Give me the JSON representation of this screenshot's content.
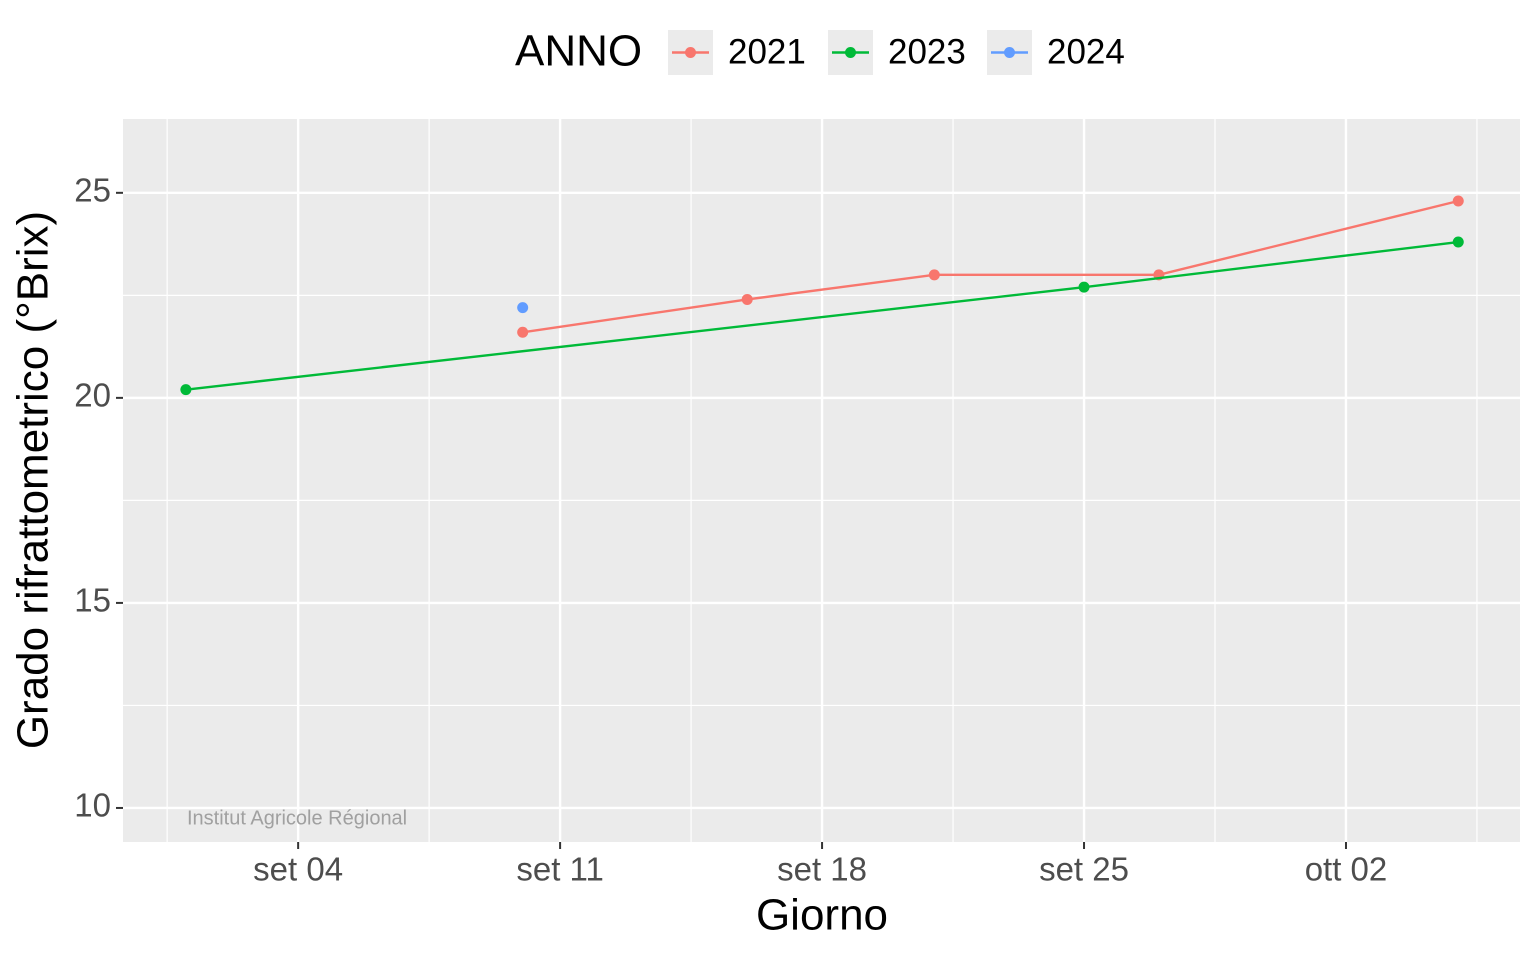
{
  "chart_data": {
    "type": "line",
    "legend_title": "ANNO",
    "x_label": "Giorno",
    "y_label": "Grado rifrattometrico (°Brix)",
    "annotation": "Institut Agricole Régional",
    "xlim": [
      -0.68,
      36.65
    ],
    "xticks": [
      {
        "value": 4,
        "label": "set 04"
      },
      {
        "value": 11,
        "label": "set 11"
      },
      {
        "value": 18,
        "label": "set 18"
      },
      {
        "value": 25,
        "label": "set 25"
      },
      {
        "value": 32,
        "label": "ott 02"
      }
    ],
    "ylim": [
      9.17,
      26.8
    ],
    "yticks": [
      10,
      15,
      20,
      25
    ],
    "grid": true,
    "legend_position": "top",
    "series": [
      {
        "name": "2021",
        "color": "#F8766D",
        "x": [
          10,
          16,
          21,
          27,
          35
        ],
        "values": [
          21.6,
          22.4,
          23.0,
          23.0,
          24.8
        ]
      },
      {
        "name": "2023",
        "color": "#00BA38",
        "x": [
          1,
          25,
          35
        ],
        "values": [
          20.2,
          22.7,
          23.8
        ]
      },
      {
        "name": "2024",
        "color": "#619CFF",
        "x": [
          10
        ],
        "values": [
          22.2
        ]
      }
    ]
  }
}
